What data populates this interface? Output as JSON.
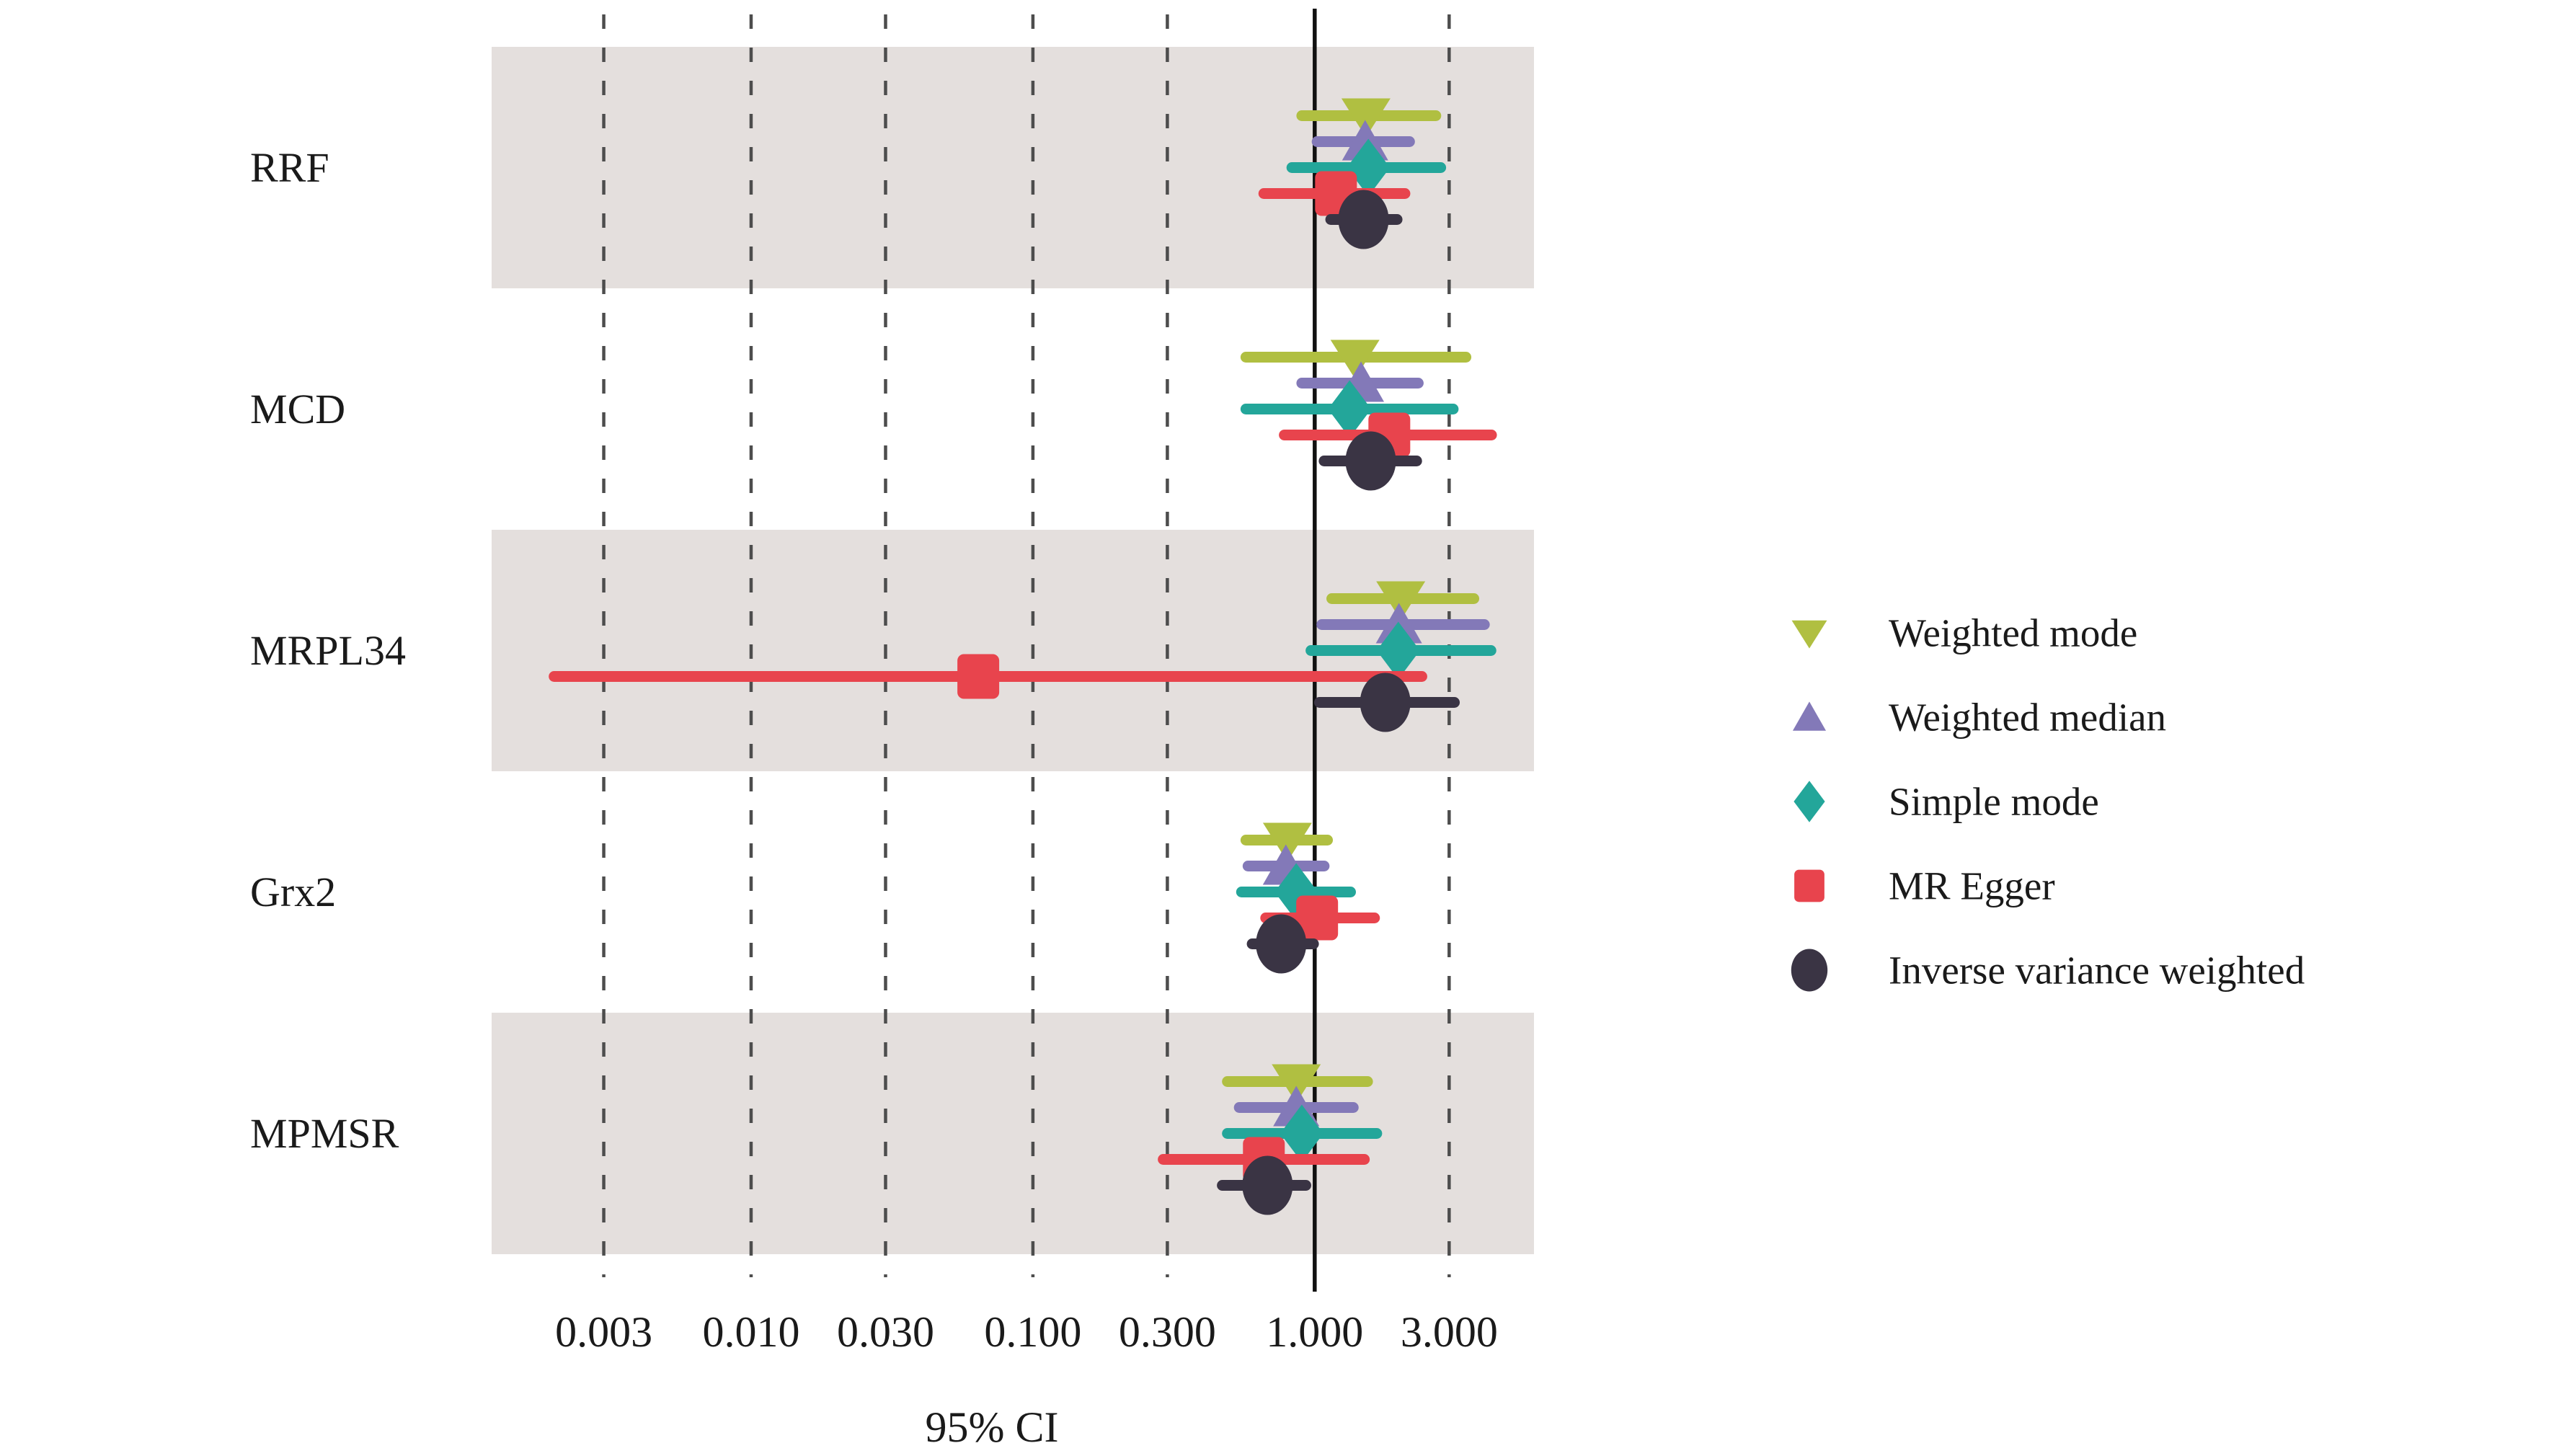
{
  "figure": {
    "background": "#ffffff",
    "band_fill": "#e4dfdd",
    "grid_color": "#4d4d4d",
    "ref_line_color": "#111111",
    "text_color": "#1a1a1a"
  },
  "chart_data": {
    "type": "scatter",
    "subtype": "forest-plot",
    "title": "",
    "xlabel": "95% CI",
    "ylabel": "",
    "x_scale": "log",
    "xlim": [
      0.0012,
      6.0
    ],
    "reference_line": 1.0,
    "x_ticks": [
      0.003,
      0.01,
      0.03,
      0.1,
      0.3,
      1.0,
      3.0
    ],
    "x_tick_labels": [
      "0.003",
      "0.010",
      "0.030",
      "0.100",
      "0.300",
      "1.000",
      "3.000"
    ],
    "grid": "dashed-vertical",
    "legend_position": "right",
    "categories": [
      "RRF",
      "MCD",
      "MRPL34",
      "Grx2",
      "MPMSR"
    ],
    "series": [
      {
        "name": "Weighted mode",
        "shape": "triangle-down",
        "color": "#b0bf41",
        "values": [
          {
            "or": 1.52,
            "lo": 0.9,
            "hi": 2.69
          },
          {
            "or": 1.39,
            "lo": 0.57,
            "hi": 3.44
          },
          {
            "or": 2.02,
            "lo": 1.15,
            "hi": 3.67
          },
          {
            "or": 0.8,
            "lo": 0.57,
            "hi": 1.11
          },
          {
            "or": 0.86,
            "lo": 0.49,
            "hi": 1.54
          }
        ]
      },
      {
        "name": "Weighted median",
        "shape": "triangle-up",
        "color": "#8379b8",
        "values": [
          {
            "or": 1.51,
            "lo": 1.02,
            "hi": 2.17
          },
          {
            "or": 1.46,
            "lo": 0.9,
            "hi": 2.33
          },
          {
            "or": 1.99,
            "lo": 1.06,
            "hi": 4.0
          },
          {
            "or": 0.79,
            "lo": 0.58,
            "hi": 1.08
          },
          {
            "or": 0.86,
            "lo": 0.54,
            "hi": 1.37
          }
        ]
      },
      {
        "name": "Simple mode",
        "shape": "diamond",
        "color": "#23a69a",
        "values": [
          {
            "or": 1.55,
            "lo": 0.83,
            "hi": 2.8
          },
          {
            "or": 1.33,
            "lo": 0.57,
            "hi": 3.1
          },
          {
            "or": 1.98,
            "lo": 0.97,
            "hi": 4.22
          },
          {
            "or": 0.86,
            "lo": 0.55,
            "hi": 1.34
          },
          {
            "or": 0.9,
            "lo": 0.49,
            "hi": 1.66
          }
        ]
      },
      {
        "name": "MR Egger",
        "shape": "square",
        "color": "#e8444d",
        "values": [
          {
            "or": 1.19,
            "lo": 0.66,
            "hi": 2.09
          },
          {
            "or": 1.84,
            "lo": 0.78,
            "hi": 4.24
          },
          {
            "or": 0.064,
            "lo": 0.002,
            "hi": 2.4
          },
          {
            "or": 1.02,
            "lo": 0.67,
            "hi": 1.63
          },
          {
            "or": 0.66,
            "lo": 0.29,
            "hi": 1.5
          }
        ]
      },
      {
        "name": "Inverse variance weighted",
        "shape": "circle",
        "color": "#3a3444",
        "values": [
          {
            "or": 1.49,
            "lo": 1.14,
            "hi": 1.96
          },
          {
            "or": 1.58,
            "lo": 1.08,
            "hi": 2.3
          },
          {
            "or": 1.78,
            "lo": 1.04,
            "hi": 3.13
          },
          {
            "or": 0.76,
            "lo": 0.6,
            "hi": 0.99
          },
          {
            "or": 0.68,
            "lo": 0.47,
            "hi": 0.93
          }
        ]
      }
    ]
  }
}
